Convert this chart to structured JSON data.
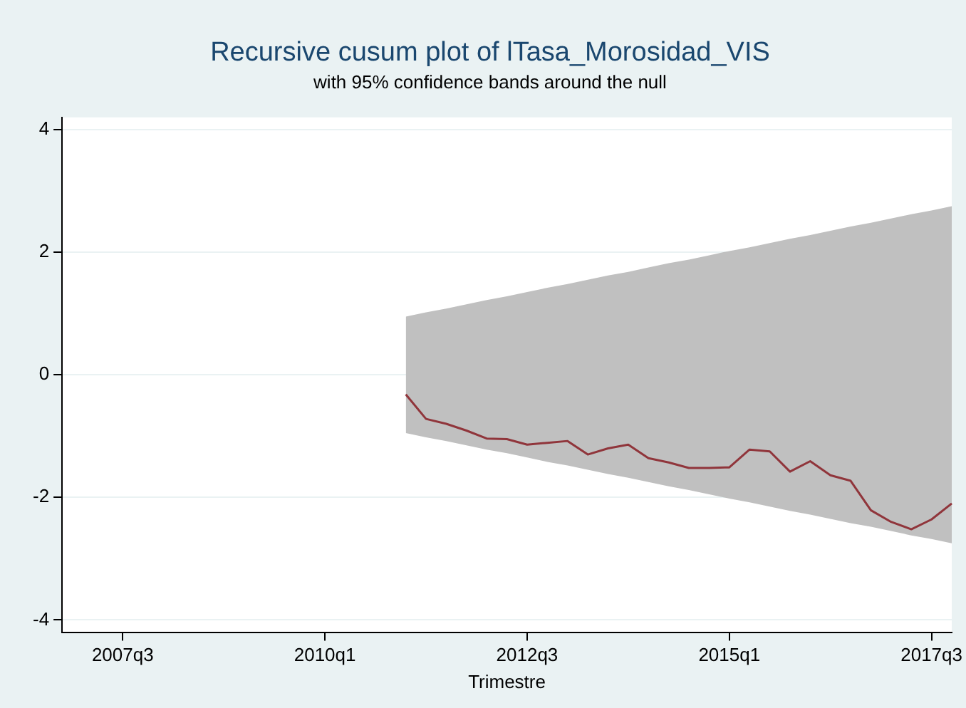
{
  "chart_data": {
    "type": "line",
    "title": "Recursive cusum plot of lTasa_Morosidad_VIS",
    "subtitle": "with 95% confidence bands around the null",
    "xlabel": "Trimestre",
    "categories": [
      null,
      null,
      null,
      "2007q3",
      null,
      null,
      null,
      null,
      null,
      null,
      null,
      null,
      null,
      "2010q1",
      null,
      null,
      null,
      null,
      null,
      null,
      null,
      null,
      null,
      "2012q3",
      null,
      null,
      null,
      null,
      null,
      null,
      null,
      null,
      null,
      "2015q1",
      null,
      null,
      null,
      null,
      null,
      null,
      null,
      null,
      null,
      "2017q3",
      null
    ],
    "series": [
      {
        "color": "#90353b",
        "values": [
          null,
          null,
          null,
          null,
          null,
          null,
          null,
          null,
          null,
          null,
          null,
          null,
          null,
          null,
          null,
          null,
          null,
          -0.32,
          -0.72,
          -0.8,
          -0.91,
          -1.04,
          -1.05,
          -1.14,
          -1.11,
          -1.08,
          -1.3,
          -1.2,
          -1.14,
          -1.36,
          -1.43,
          -1.52,
          -1.52,
          -1.51,
          -1.22,
          -1.25,
          -1.58,
          -1.41,
          -1.64,
          -1.73,
          -2.21,
          -2.4,
          -2.52,
          -2.36,
          -2.1
        ],
        "lower": [
          null,
          null,
          null,
          null,
          null,
          null,
          null,
          null,
          null,
          null,
          null,
          null,
          null,
          null,
          null,
          null,
          null,
          -0.95,
          -1.02,
          -1.08,
          -1.15,
          -1.22,
          -1.28,
          -1.35,
          -1.42,
          -1.48,
          -1.55,
          -1.62,
          -1.68,
          -1.75,
          -1.82,
          -1.88,
          -1.95,
          -2.02,
          -2.08,
          -2.15,
          -2.22,
          -2.28,
          -2.35,
          -2.42,
          -2.48,
          -2.55,
          -2.62,
          -2.68,
          -2.75
        ],
        "upper": [
          null,
          null,
          null,
          null,
          null,
          null,
          null,
          null,
          null,
          null,
          null,
          null,
          null,
          null,
          null,
          null,
          null,
          0.95,
          1.02,
          1.08,
          1.15,
          1.22,
          1.28,
          1.35,
          1.42,
          1.48,
          1.55,
          1.62,
          1.68,
          1.75,
          1.82,
          1.88,
          1.95,
          2.02,
          2.08,
          2.15,
          2.22,
          2.28,
          2.35,
          2.42,
          2.48,
          2.55,
          2.62,
          2.68,
          2.75
        ]
      }
    ],
    "ylim": [
      -4.2,
      4.2
    ],
    "yticks": [
      -4,
      -2,
      0,
      2,
      4
    ],
    "grid": "y",
    "legend": false,
    "marker": "none",
    "line_style": "solid"
  }
}
